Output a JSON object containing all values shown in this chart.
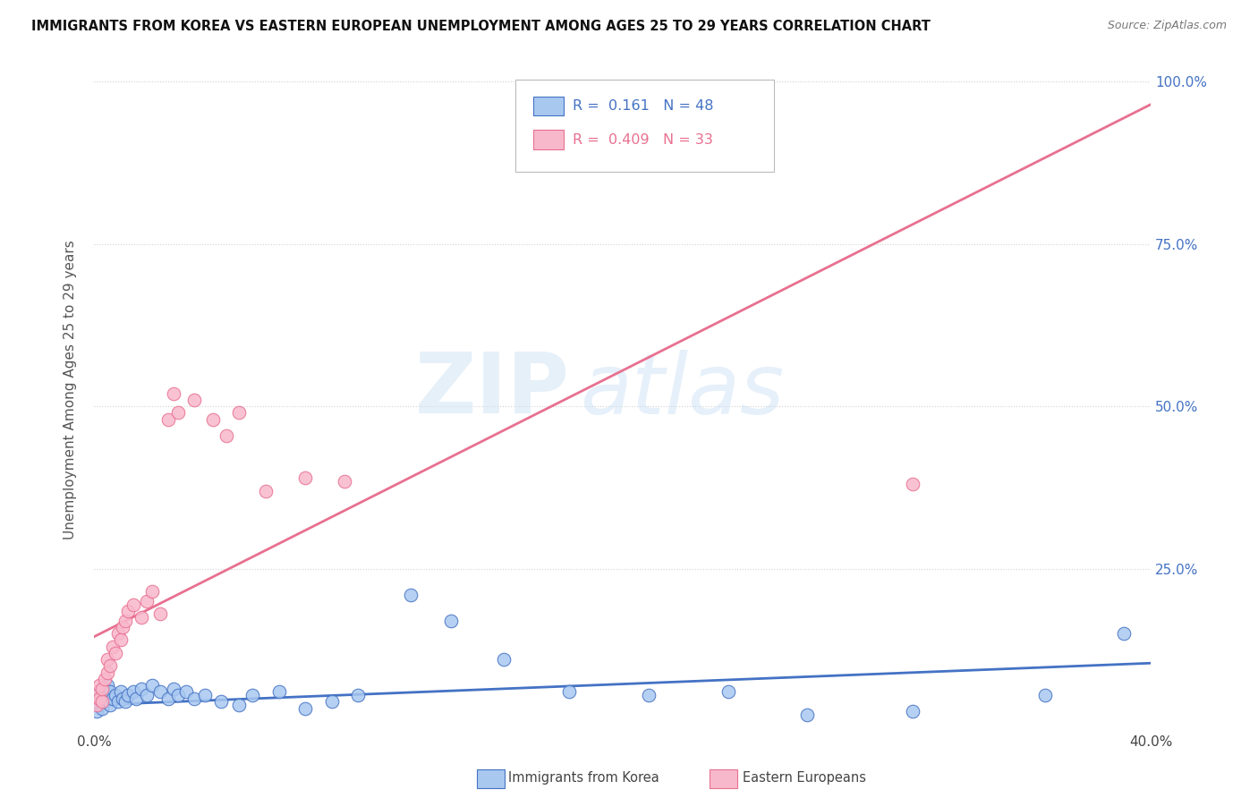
{
  "title": "IMMIGRANTS FROM KOREA VS EASTERN EUROPEAN UNEMPLOYMENT AMONG AGES 25 TO 29 YEARS CORRELATION CHART",
  "source": "Source: ZipAtlas.com",
  "ylabel": "Unemployment Among Ages 25 to 29 years",
  "x_min": 0.0,
  "x_max": 0.4,
  "y_min": 0.0,
  "y_max": 1.05,
  "legend_R1": "0.161",
  "legend_N1": "48",
  "legend_R2": "0.409",
  "legend_N2": "33",
  "series1_color": "#a8c8f0",
  "series2_color": "#f8b8cc",
  "series1_label": "Immigrants from Korea",
  "series2_label": "Eastern Europeans",
  "trend1_color": "#4472c4",
  "trend2_color": "#e87090",
  "watermark_zip": "ZIP",
  "watermark_atlas": "atlas",
  "korea_x": [
    0.001,
    0.001,
    0.002,
    0.002,
    0.003,
    0.003,
    0.004,
    0.004,
    0.005,
    0.005,
    0.006,
    0.006,
    0.007,
    0.008,
    0.009,
    0.01,
    0.011,
    0.012,
    0.013,
    0.015,
    0.016,
    0.018,
    0.02,
    0.022,
    0.025,
    0.028,
    0.03,
    0.032,
    0.035,
    0.038,
    0.042,
    0.048,
    0.055,
    0.06,
    0.07,
    0.08,
    0.09,
    0.1,
    0.12,
    0.135,
    0.155,
    0.18,
    0.21,
    0.24,
    0.27,
    0.31,
    0.36,
    0.39
  ],
  "korea_y": [
    0.03,
    0.05,
    0.04,
    0.06,
    0.035,
    0.055,
    0.045,
    0.065,
    0.05,
    0.07,
    0.04,
    0.06,
    0.05,
    0.055,
    0.045,
    0.06,
    0.05,
    0.045,
    0.055,
    0.06,
    0.05,
    0.065,
    0.055,
    0.07,
    0.06,
    0.05,
    0.065,
    0.055,
    0.06,
    0.05,
    0.055,
    0.045,
    0.04,
    0.055,
    0.06,
    0.035,
    0.045,
    0.055,
    0.21,
    0.17,
    0.11,
    0.06,
    0.055,
    0.06,
    0.025,
    0.03,
    0.055,
    0.15
  ],
  "eastern_x": [
    0.001,
    0.001,
    0.002,
    0.002,
    0.003,
    0.003,
    0.004,
    0.005,
    0.005,
    0.006,
    0.007,
    0.008,
    0.009,
    0.01,
    0.011,
    0.012,
    0.013,
    0.015,
    0.018,
    0.02,
    0.022,
    0.025,
    0.028,
    0.03,
    0.032,
    0.038,
    0.045,
    0.05,
    0.055,
    0.065,
    0.08,
    0.095,
    0.31
  ],
  "eastern_y": [
    0.04,
    0.06,
    0.05,
    0.07,
    0.045,
    0.065,
    0.08,
    0.09,
    0.11,
    0.1,
    0.13,
    0.12,
    0.15,
    0.14,
    0.16,
    0.17,
    0.185,
    0.195,
    0.175,
    0.2,
    0.215,
    0.18,
    0.48,
    0.52,
    0.49,
    0.51,
    0.48,
    0.455,
    0.49,
    0.37,
    0.39,
    0.385,
    0.38
  ],
  "trend1_slope": 0.161,
  "trend1_intercept": 0.04,
  "trend2_slope": 2.05,
  "trend2_intercept": 0.145
}
